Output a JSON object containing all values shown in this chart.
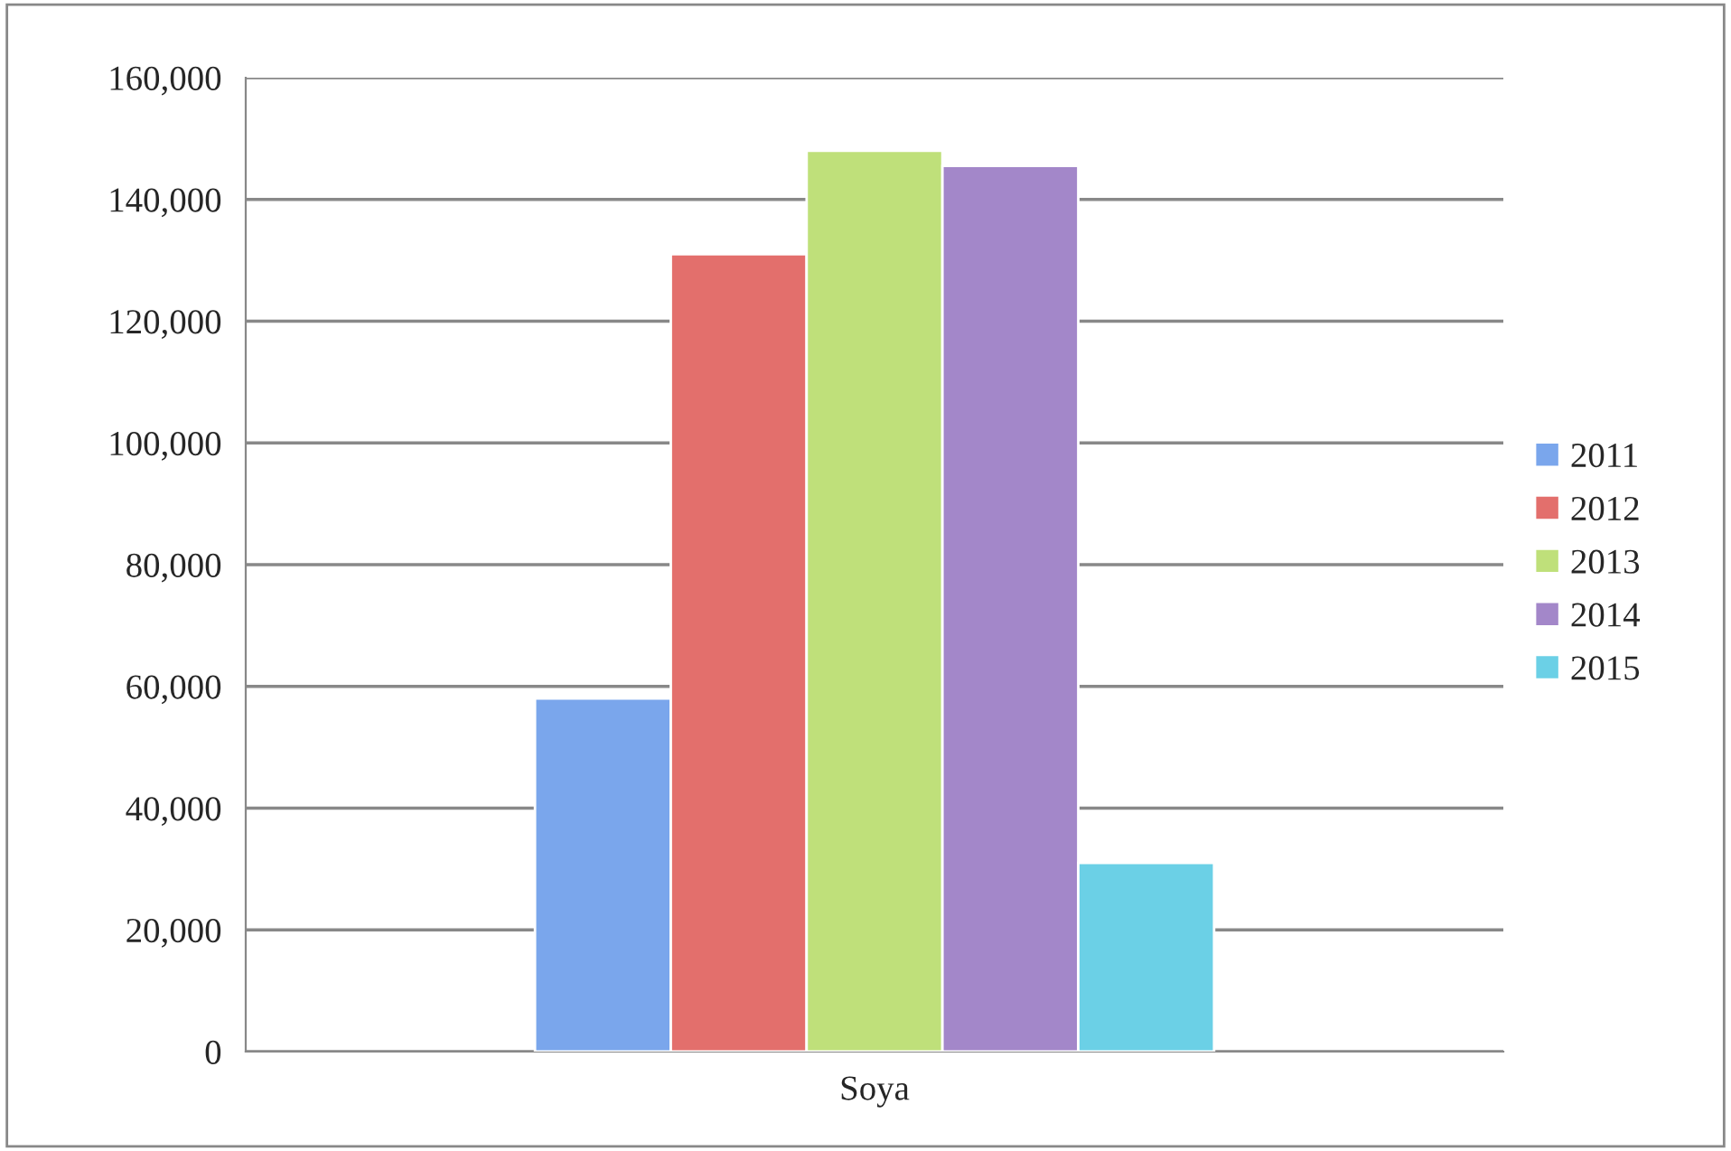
{
  "chart_data": {
    "type": "bar",
    "categories": [
      "Soya"
    ],
    "series": [
      {
        "name": "2011",
        "color": "#7aa6ec",
        "values": [
          58000
        ]
      },
      {
        "name": "2012",
        "color": "#e36f6c",
        "values": [
          131000
        ]
      },
      {
        "name": "2013",
        "color": "#bfe07a",
        "values": [
          148000
        ]
      },
      {
        "name": "2014",
        "color": "#a387c9",
        "values": [
          145500
        ]
      },
      {
        "name": "2015",
        "color": "#6bd0e6",
        "values": [
          31000
        ]
      }
    ],
    "ylim": [
      0,
      160000
    ],
    "yticks": [
      {
        "value": 0,
        "label": "0"
      },
      {
        "value": 20000,
        "label": "20,000"
      },
      {
        "value": 40000,
        "label": "40,000"
      },
      {
        "value": 60000,
        "label": "60,000"
      },
      {
        "value": 80000,
        "label": "80,000"
      },
      {
        "value": 100000,
        "label": "100,000"
      },
      {
        "value": 120000,
        "label": "120,000"
      },
      {
        "value": 140000,
        "label": "140,000"
      },
      {
        "value": 160000,
        "label": "160,000"
      }
    ],
    "grid": "y",
    "legend": "right"
  }
}
